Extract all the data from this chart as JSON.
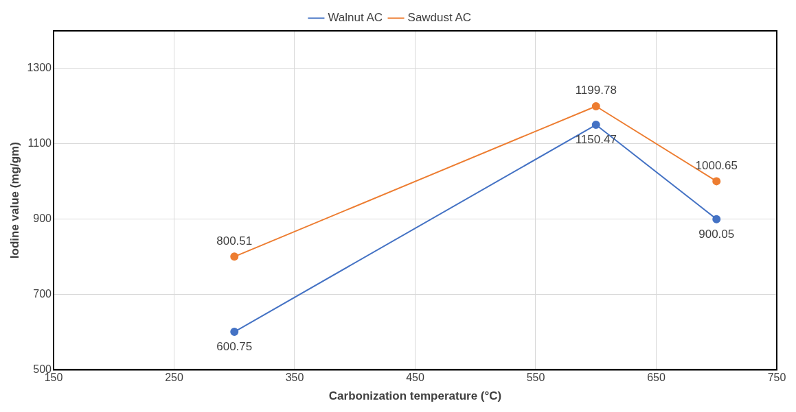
{
  "chart_data": {
    "type": "line",
    "xlabel": "Carbonization temperature (°C)",
    "ylabel": "Iodine value (mg/gm)",
    "x": [
      300,
      600,
      700
    ],
    "series": [
      {
        "name": "Walnut AC",
        "color": "#4472c4",
        "values": [
          600.75,
          1150.47,
          900.05
        ]
      },
      {
        "name": "Sawdust AC",
        "color": "#ed7d31",
        "values": [
          800.51,
          1199.78,
          1000.65
        ]
      }
    ],
    "xlim": [
      150,
      750
    ],
    "xticks": [
      150,
      250,
      350,
      450,
      550,
      650,
      750
    ],
    "ylim": [
      500,
      1400
    ],
    "yticks": [
      500,
      700,
      900,
      1100,
      1300
    ],
    "grid": true,
    "legend": "top",
    "marker": "circle",
    "line_style": "solid",
    "data_labels": true
  }
}
